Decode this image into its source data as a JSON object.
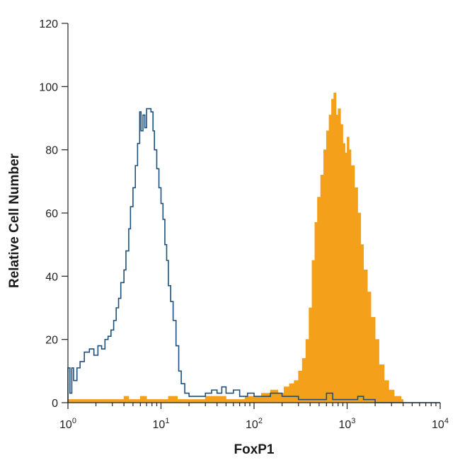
{
  "chart_data": {
    "type": "area",
    "title": "",
    "xlabel": "FoxP1",
    "ylabel": "Relative Cell Number",
    "xscale": "log",
    "xlim": [
      1,
      10000
    ],
    "ylim": [
      0,
      120
    ],
    "x_ticks": [
      {
        "value": 1,
        "base": "10",
        "exp": "0"
      },
      {
        "value": 10,
        "base": "10",
        "exp": "1"
      },
      {
        "value": 100,
        "base": "10",
        "exp": "2"
      },
      {
        "value": 1000,
        "base": "10",
        "exp": "3"
      },
      {
        "value": 10000,
        "base": "10",
        "exp": "4"
      }
    ],
    "y_ticks": [
      0,
      20,
      40,
      60,
      80,
      100,
      120
    ],
    "grid": false,
    "legend": "none",
    "series": [
      {
        "style": "outline",
        "color": "#1d4f7c",
        "points": [
          [
            1.0,
            0
          ],
          [
            1.0,
            11
          ],
          [
            1.05,
            3
          ],
          [
            1.1,
            11
          ],
          [
            1.15,
            7
          ],
          [
            1.25,
            11
          ],
          [
            1.35,
            13
          ],
          [
            1.5,
            16
          ],
          [
            1.7,
            17
          ],
          [
            1.9,
            15
          ],
          [
            2.1,
            18
          ],
          [
            2.3,
            17
          ],
          [
            2.5,
            20
          ],
          [
            2.7,
            21
          ],
          [
            2.9,
            23
          ],
          [
            3.1,
            26
          ],
          [
            3.3,
            30
          ],
          [
            3.5,
            33
          ],
          [
            3.7,
            38
          ],
          [
            4.0,
            42
          ],
          [
            4.2,
            48
          ],
          [
            4.5,
            55
          ],
          [
            4.7,
            62
          ],
          [
            5.0,
            68
          ],
          [
            5.3,
            75
          ],
          [
            5.6,
            82
          ],
          [
            5.9,
            92
          ],
          [
            6.1,
            86
          ],
          [
            6.4,
            91
          ],
          [
            6.7,
            87
          ],
          [
            7.0,
            93
          ],
          [
            7.4,
            93
          ],
          [
            7.8,
            92
          ],
          [
            8.2,
            86
          ],
          [
            8.5,
            80
          ],
          [
            9.0,
            74
          ],
          [
            9.5,
            68
          ],
          [
            10.0,
            63
          ],
          [
            10.5,
            58
          ],
          [
            11.0,
            50
          ],
          [
            11.5,
            45
          ],
          [
            12.0,
            37
          ],
          [
            12.7,
            32
          ],
          [
            13.5,
            26
          ],
          [
            14.5,
            18
          ],
          [
            15.5,
            10
          ],
          [
            16.5,
            6
          ],
          [
            18.0,
            3
          ],
          [
            20.0,
            2
          ],
          [
            25.0,
            2
          ],
          [
            30.0,
            3
          ],
          [
            35.0,
            4
          ],
          [
            40.0,
            3
          ],
          [
            45.0,
            5
          ],
          [
            50.0,
            3
          ],
          [
            60.0,
            4
          ],
          [
            70.0,
            2
          ],
          [
            85.0,
            3
          ],
          [
            100.0,
            2
          ],
          [
            150.0,
            3
          ],
          [
            200.0,
            2
          ],
          [
            300.0,
            1
          ],
          [
            400.0,
            1
          ],
          [
            500.0,
            1
          ],
          [
            600.0,
            3
          ],
          [
            700.0,
            1
          ],
          [
            1000.0,
            1
          ],
          [
            1300.0,
            2
          ],
          [
            1500.0,
            1
          ],
          [
            2000.0,
            0
          ],
          [
            10000.0,
            0
          ]
        ]
      },
      {
        "style": "filled",
        "color": "#f5a01a",
        "points": [
          [
            1.0,
            0
          ],
          [
            1.0,
            1
          ],
          [
            3.5,
            1
          ],
          [
            4.0,
            2
          ],
          [
            4.5,
            1
          ],
          [
            6.0,
            2
          ],
          [
            7.0,
            1
          ],
          [
            10.0,
            1
          ],
          [
            12.0,
            2
          ],
          [
            15.0,
            1
          ],
          [
            20.0,
            1
          ],
          [
            30.0,
            2
          ],
          [
            50.0,
            1
          ],
          [
            80.0,
            2
          ],
          [
            120.0,
            3
          ],
          [
            150.0,
            4
          ],
          [
            180.0,
            3
          ],
          [
            210.0,
            5
          ],
          [
            240.0,
            6
          ],
          [
            270.0,
            7
          ],
          [
            300.0,
            10
          ],
          [
            330.0,
            14
          ],
          [
            360.0,
            20
          ],
          [
            390.0,
            30
          ],
          [
            420.0,
            45
          ],
          [
            450.0,
            57
          ],
          [
            480.0,
            65
          ],
          [
            520.0,
            72
          ],
          [
            560.0,
            80
          ],
          [
            600.0,
            86
          ],
          [
            640.0,
            91
          ],
          [
            680.0,
            96
          ],
          [
            720.0,
            98
          ],
          [
            760.0,
            91
          ],
          [
            800.0,
            93
          ],
          [
            850.0,
            88
          ],
          [
            900.0,
            82
          ],
          [
            950.0,
            79
          ],
          [
            1000.0,
            84
          ],
          [
            1050.0,
            80
          ],
          [
            1100.0,
            75
          ],
          [
            1200.0,
            68
          ],
          [
            1300.0,
            60
          ],
          [
            1400.0,
            50
          ],
          [
            1500.0,
            42
          ],
          [
            1650.0,
            35
          ],
          [
            1800.0,
            27
          ],
          [
            2000.0,
            20
          ],
          [
            2200.0,
            12
          ],
          [
            2500.0,
            7
          ],
          [
            2800.0,
            4
          ],
          [
            3200.0,
            2
          ],
          [
            3800.0,
            1
          ],
          [
            4000.0,
            0
          ]
        ]
      }
    ]
  }
}
